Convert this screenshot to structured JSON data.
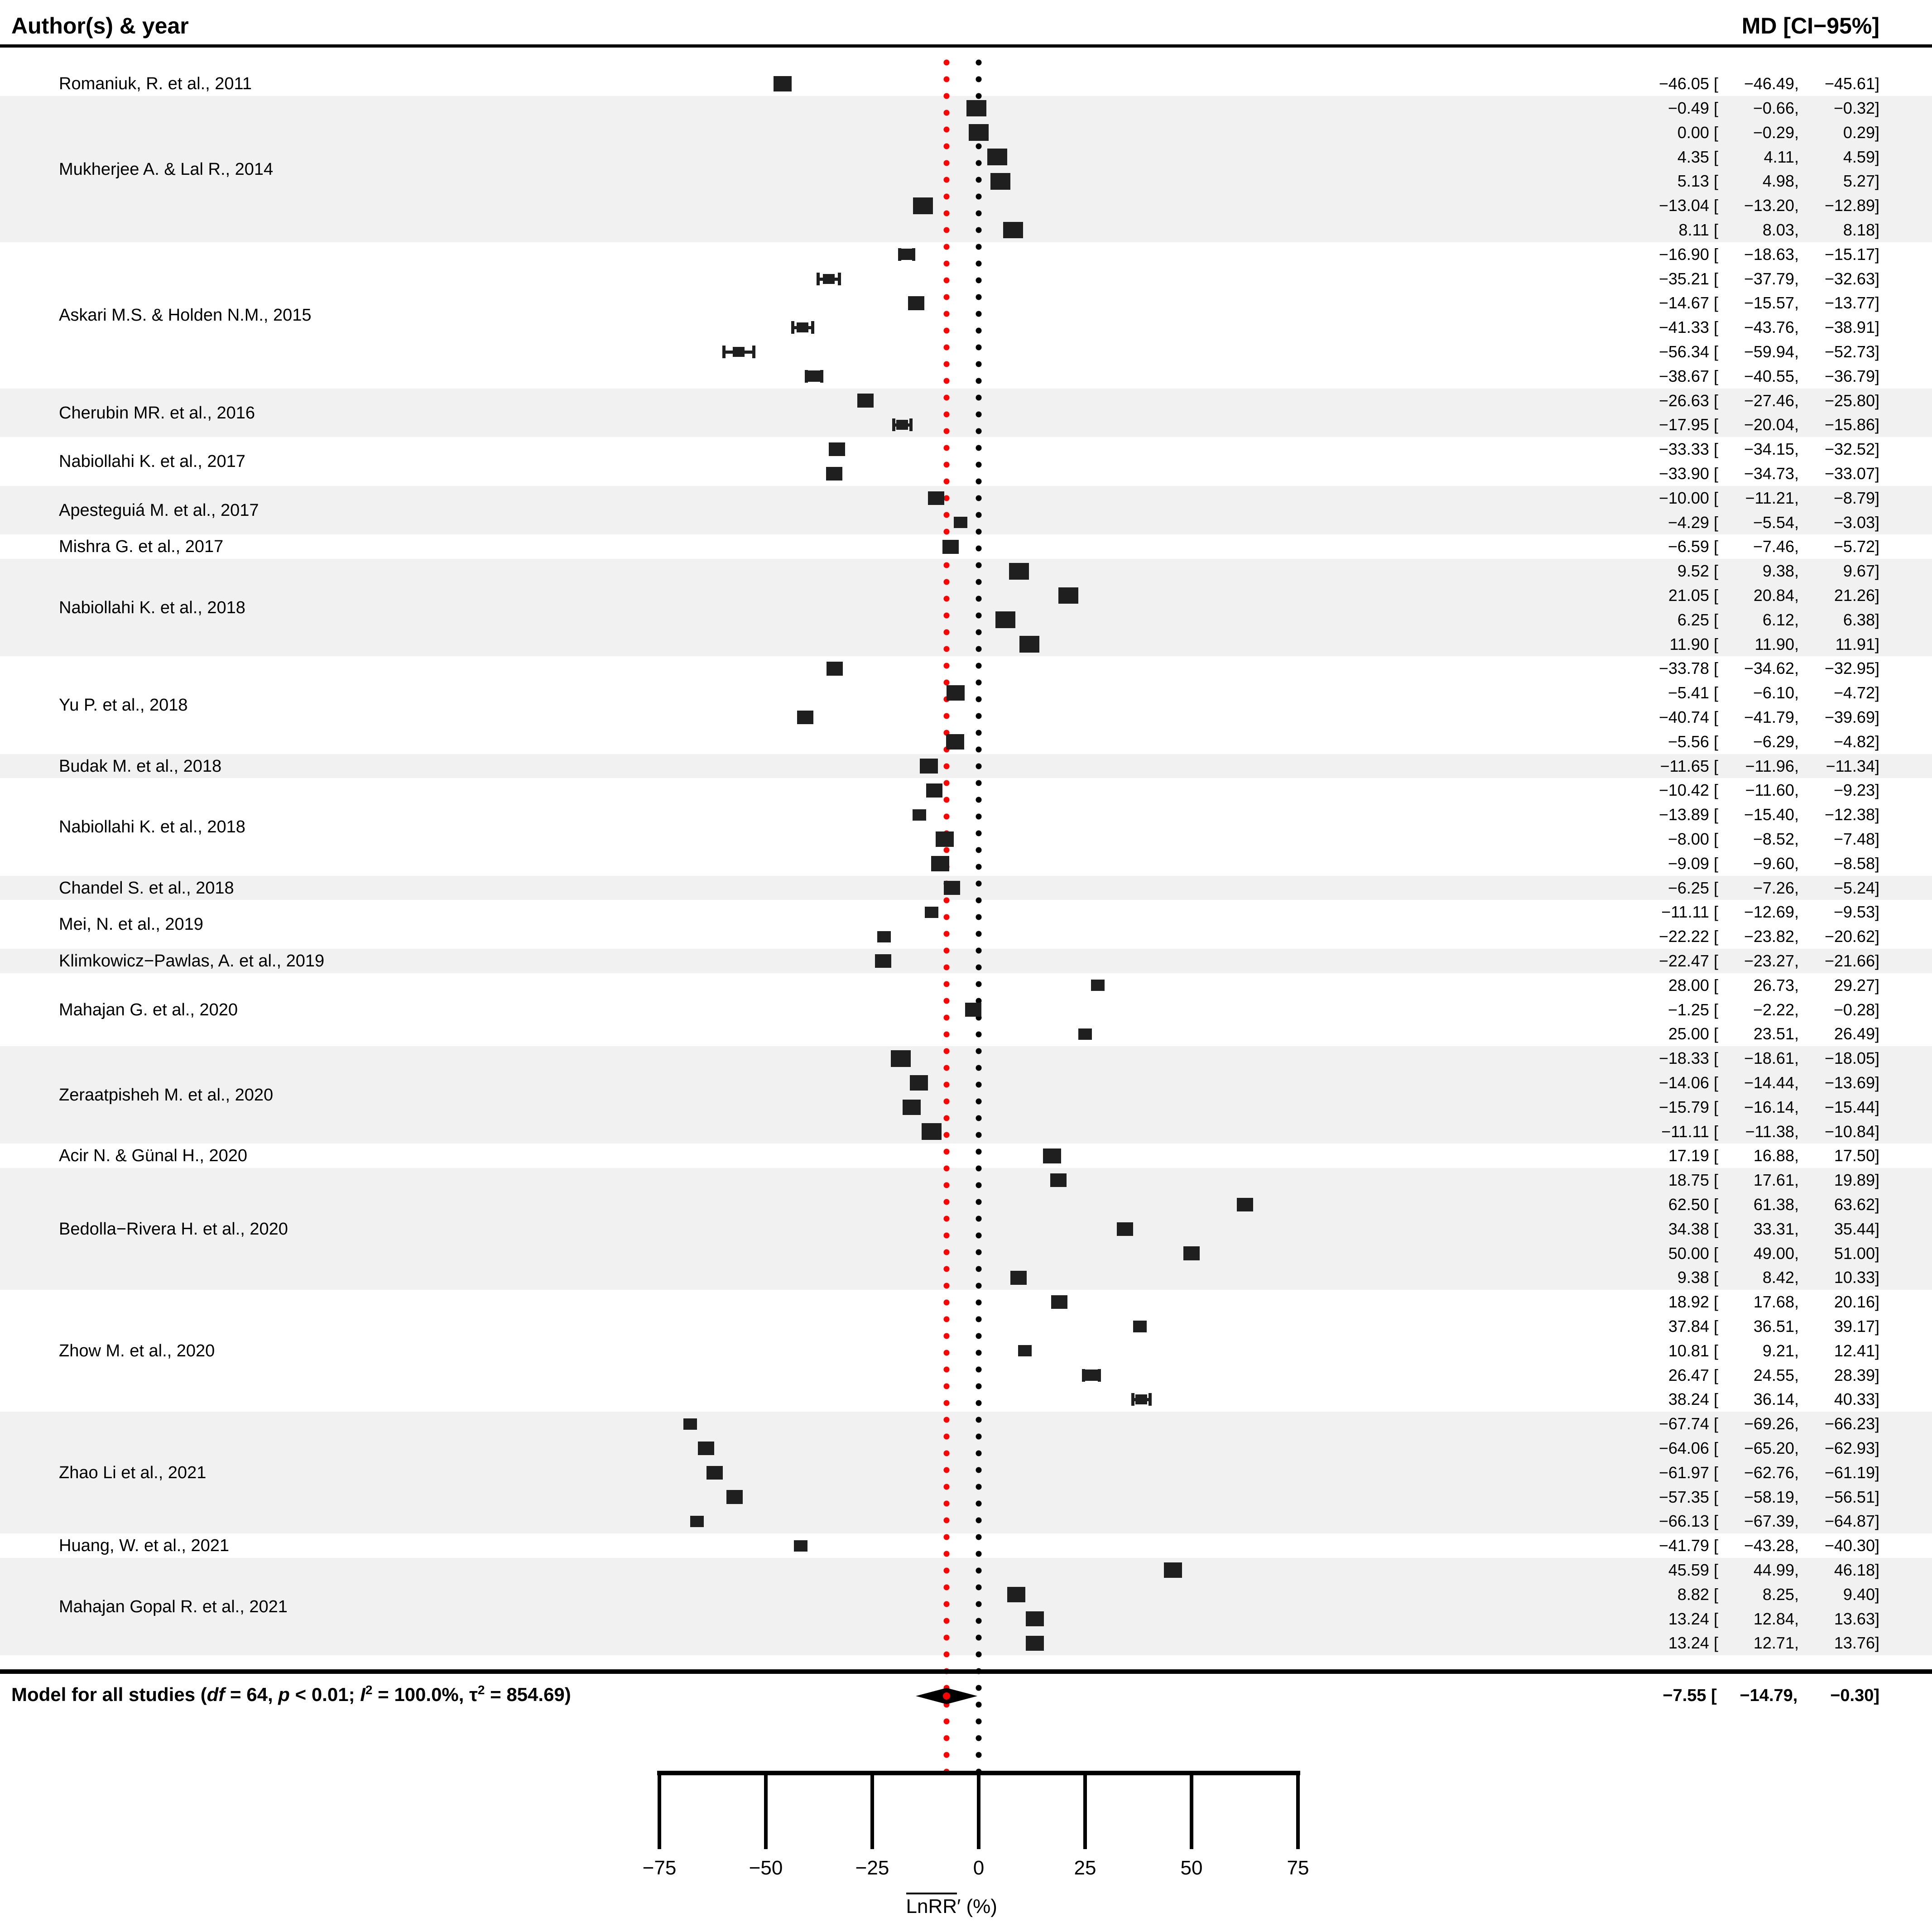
{
  "header": {
    "left": "Author(s) & year",
    "right": "MD [CI−95%]"
  },
  "colors": {
    "accent_red": "#ff0000",
    "band_gray": "#f1f1f1",
    "marker": "#1f1f1f",
    "text": "#000000"
  },
  "model_row": {
    "prefix": "Model for all studies (",
    "df_label": "df",
    "df_rest": " = 64, ",
    "p_label": "p",
    "p_rest": " < 0.01; ",
    "i_label": "I",
    "i_sup": "2",
    "i_rest": " = 100.0%, ",
    "tau_label": "τ",
    "tau_sup": "2",
    "tau_rest": " = 854.69)"
  },
  "chart_data": {
    "type": "scatter",
    "title": "",
    "xlabel": "LnRR′ (%)",
    "ylabel": "",
    "xlim": [
      -75,
      75
    ],
    "grid": false,
    "zero_line": 0,
    "summary": {
      "md": -7.55,
      "lo": -14.79,
      "hi": -0.3
    },
    "axis_ticks": [
      -75,
      -50,
      -25,
      0,
      25,
      50,
      75
    ],
    "axis_title_overlined": "LnRR",
    "axis_title_prime": "′",
    "axis_title_suffix": " (%)",
    "groups": [
      {
        "label": "Romaniuk, R. et al., 2011",
        "estimates": [
          [
            -46.05,
            -46.49,
            -45.61
          ]
        ]
      },
      {
        "label": "Mukherjee A. & Lal R., 2014",
        "estimates": [
          [
            -0.49,
            -0.66,
            -0.32
          ],
          [
            0.0,
            -0.29,
            0.29
          ],
          [
            4.35,
            4.11,
            4.59
          ],
          [
            5.13,
            4.98,
            5.27
          ],
          [
            -13.04,
            -13.2,
            -12.89
          ],
          [
            8.11,
            8.03,
            8.18
          ]
        ]
      },
      {
        "label": "Askari M.S. & Holden N.M., 2015",
        "estimates": [
          [
            -16.9,
            -18.63,
            -15.17
          ],
          [
            -35.21,
            -37.79,
            -32.63
          ],
          [
            -14.67,
            -15.57,
            -13.77
          ],
          [
            -41.33,
            -43.76,
            -38.91
          ],
          [
            -56.34,
            -59.94,
            -52.73
          ],
          [
            -38.67,
            -40.55,
            -36.79
          ]
        ]
      },
      {
        "label": "Cherubin MR. et al., 2016",
        "estimates": [
          [
            -26.63,
            -27.46,
            -25.8
          ],
          [
            -17.95,
            -20.04,
            -15.86
          ]
        ]
      },
      {
        "label": "Nabiollahi K. et al., 2017",
        "estimates": [
          [
            -33.33,
            -34.15,
            -32.52
          ],
          [
            -33.9,
            -34.73,
            -33.07
          ]
        ]
      },
      {
        "label": "Apesteguiá M. et al., 2017",
        "estimates": [
          [
            -10.0,
            -11.21,
            -8.79
          ],
          [
            -4.29,
            -5.54,
            -3.03
          ]
        ]
      },
      {
        "label": "Mishra G. et al., 2017",
        "estimates": [
          [
            -6.59,
            -7.46,
            -5.72
          ]
        ]
      },
      {
        "label": "Nabiollahi K. et al., 2018",
        "estimates": [
          [
            9.52,
            9.38,
            9.67
          ],
          [
            21.05,
            20.84,
            21.26
          ],
          [
            6.25,
            6.12,
            6.38
          ],
          [
            11.9,
            11.9,
            11.91
          ]
        ]
      },
      {
        "label": "Yu P. et al., 2018",
        "estimates": [
          [
            -33.78,
            -34.62,
            -32.95
          ],
          [
            -5.41,
            -6.1,
            -4.72
          ],
          [
            -40.74,
            -41.79,
            -39.69
          ],
          [
            -5.56,
            -6.29,
            -4.82
          ]
        ]
      },
      {
        "label": "Budak M. et al., 2018",
        "estimates": [
          [
            -11.65,
            -11.96,
            -11.34
          ]
        ]
      },
      {
        "label": "Nabiollahi K. et al., 2018",
        "estimates": [
          [
            -10.42,
            -11.6,
            -9.23
          ],
          [
            -13.89,
            -15.4,
            -12.38
          ],
          [
            -8.0,
            -8.52,
            -7.48
          ],
          [
            -9.09,
            -9.6,
            -8.58
          ]
        ]
      },
      {
        "label": "Chandel S. et al., 2018",
        "estimates": [
          [
            -6.25,
            -7.26,
            -5.24
          ]
        ]
      },
      {
        "label": "Mei, N. et al., 2019",
        "estimates": [
          [
            -11.11,
            -12.69,
            -9.53
          ],
          [
            -22.22,
            -23.82,
            -20.62
          ]
        ]
      },
      {
        "label": "Klimkowicz−Pawlas, A. et al., 2019",
        "estimates": [
          [
            -22.47,
            -23.27,
            -21.66
          ]
        ]
      },
      {
        "label": "Mahajan G. et al., 2020",
        "estimates": [
          [
            28.0,
            26.73,
            29.27
          ],
          [
            -1.25,
            -2.22,
            -0.28
          ],
          [
            25.0,
            23.51,
            26.49
          ]
        ]
      },
      {
        "label": "Zeraatpisheh M. et al., 2020",
        "estimates": [
          [
            -18.33,
            -18.61,
            -18.05
          ],
          [
            -14.06,
            -14.44,
            -13.69
          ],
          [
            -15.79,
            -16.14,
            -15.44
          ],
          [
            -11.11,
            -11.38,
            -10.84
          ]
        ]
      },
      {
        "label": "Acir N. & Günal H., 2020",
        "estimates": [
          [
            17.19,
            16.88,
            17.5
          ]
        ]
      },
      {
        "label": "Bedolla−Rivera H. et al., 2020",
        "estimates": [
          [
            18.75,
            17.61,
            19.89
          ],
          [
            62.5,
            61.38,
            63.62
          ],
          [
            34.38,
            33.31,
            35.44
          ],
          [
            50.0,
            49.0,
            51.0
          ],
          [
            9.38,
            8.42,
            10.33
          ]
        ]
      },
      {
        "label": "Zhow M. et al., 2020",
        "estimates": [
          [
            18.92,
            17.68,
            20.16
          ],
          [
            37.84,
            36.51,
            39.17
          ],
          [
            10.81,
            9.21,
            12.41
          ],
          [
            26.47,
            24.55,
            28.39
          ],
          [
            38.24,
            36.14,
            40.33
          ]
        ]
      },
      {
        "label": "Zhao Li et al., 2021",
        "estimates": [
          [
            -67.74,
            -69.26,
            -66.23
          ],
          [
            -64.06,
            -65.2,
            -62.93
          ],
          [
            -61.97,
            -62.76,
            -61.19
          ],
          [
            -57.35,
            -58.19,
            -56.51
          ],
          [
            -66.13,
            -67.39,
            -64.87
          ]
        ]
      },
      {
        "label": "Huang, W. et al., 2021",
        "estimates": [
          [
            -41.79,
            -43.28,
            -40.3
          ]
        ]
      },
      {
        "label": "Mahajan Gopal R. et al., 2021",
        "estimates": [
          [
            45.59,
            44.99,
            46.18
          ],
          [
            8.82,
            8.25,
            9.4
          ],
          [
            13.24,
            12.84,
            13.63
          ],
          [
            13.24,
            12.71,
            13.76
          ]
        ]
      }
    ]
  }
}
